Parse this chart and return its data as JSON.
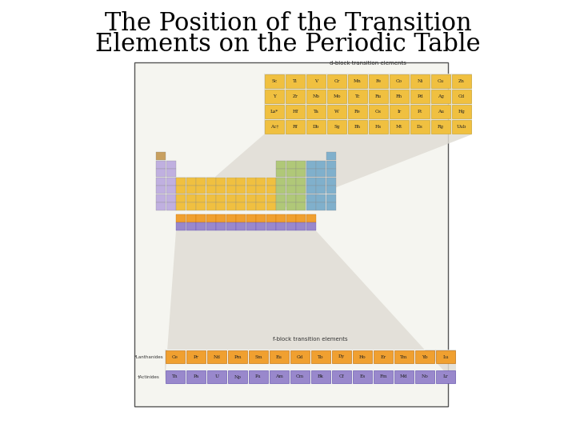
{
  "title_line1": "The Position of the Transition",
  "title_line2": "Elements on the Periodic Table",
  "title_fontsize": 22,
  "bg_color": "#ffffff",
  "panel_bg": "#f0f0f0",
  "d_block_color": "#f0c040",
  "f_block_lanthanide_color": "#f0a030",
  "f_block_actinide_color": "#9988cc",
  "wedge_color": "#e0ddd5",
  "d_block_elements": [
    [
      "Sc",
      "Ti",
      "V",
      "Cr",
      "Mn",
      "Fe",
      "Co",
      "Ni",
      "Cu",
      "Zn"
    ],
    [
      "Y",
      "Zr",
      "Nb",
      "Mo",
      "Tc",
      "Ru",
      "Rh",
      "Pd",
      "Ag",
      "Cd"
    ],
    [
      "La*",
      "Hf",
      "Ta",
      "W",
      "Re",
      "Os",
      "Ir",
      "Pt",
      "Au",
      "Hg"
    ],
    [
      "Ac†",
      "Rf",
      "Db",
      "Sg",
      "Bh",
      "Hs",
      "Mt",
      "Ds",
      "Rg",
      "Uub"
    ]
  ],
  "f_block_lanthanides": [
    "Ce",
    "Pr",
    "Nd",
    "Pm",
    "Sm",
    "Eu",
    "Gd",
    "Tb",
    "Dy",
    "Ho",
    "Er",
    "Tm",
    "Yb",
    "Lu"
  ],
  "f_block_actinides": [
    "Th",
    "Pa",
    "U",
    "Np",
    "Pu",
    "Am",
    "Cm",
    "Bk",
    "Cf",
    "Es",
    "Fm",
    "Md",
    "No",
    "Lr"
  ],
  "d_block_label": "d-block transition elements",
  "f_block_label": "f-block transition elements",
  "lanthanides_label": "*Lanthanides",
  "actinides_label": "†Actinides",
  "mini_s_color": "#c0b0e0",
  "mini_d_color": "#f0c040",
  "mini_pg_color": "#b0c878",
  "mini_pb_color": "#80b0cc",
  "mini_h_color": "#c8a060",
  "mini_f_or_color": "#f0a030",
  "mini_f_pu_color": "#9988cc"
}
